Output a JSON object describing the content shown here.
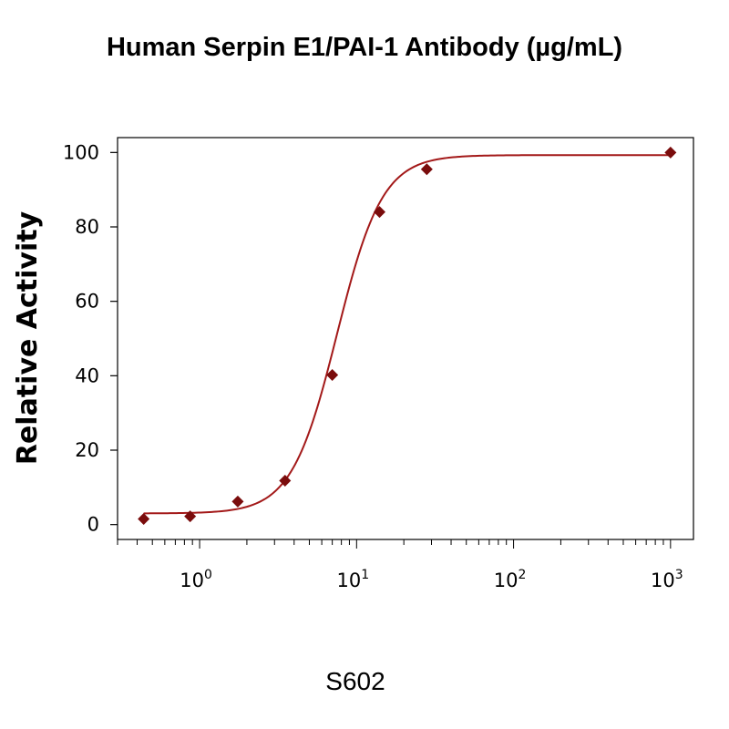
{
  "chart_data": {
    "type": "scatter",
    "title": "Human Serpin E1/PAI-1 Antibody (µg/mL)",
    "xlabel": "",
    "ylabel": "Relative Activity",
    "x_scale": "log",
    "xlim": [
      0.3,
      1400
    ],
    "ylim": [
      -4,
      104
    ],
    "x_ticks": [
      1,
      10,
      100,
      1000
    ],
    "x_tick_labels": [
      {
        "base": "10",
        "exp": "0"
      },
      {
        "base": "10",
        "exp": "1"
      },
      {
        "base": "10",
        "exp": "2"
      },
      {
        "base": "10",
        "exp": "3"
      }
    ],
    "y_ticks": [
      0,
      20,
      40,
      60,
      80,
      100
    ],
    "y_tick_labels": [
      "0",
      "20",
      "40",
      "60",
      "80",
      "100"
    ],
    "grid": false,
    "series": [
      {
        "marker": "diamond",
        "color": "#7a0c0c",
        "x": [
          0.44,
          0.87,
          1.75,
          3.5,
          7,
          14,
          28,
          1000
        ],
        "y": [
          1.5,
          2.2,
          6.2,
          11.8,
          40.2,
          84,
          95.5,
          100
        ]
      }
    ],
    "fit_curve": {
      "color": "#a31919",
      "bottom": 3.0,
      "top": 99.3,
      "ec50": 7.5,
      "hill": 3.0
    }
  },
  "caption": "S602"
}
